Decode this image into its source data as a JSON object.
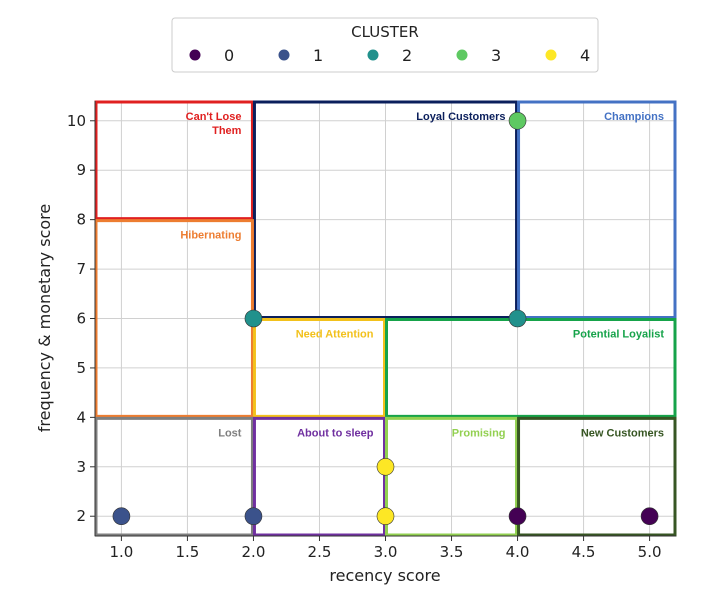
{
  "chart_data": {
    "type": "scatter",
    "xlabel": "recency score",
    "ylabel": "frequency & monetary score",
    "xlim": [
      0.8,
      5.2
    ],
    "ylim": [
      1.6,
      10.4
    ],
    "xticks": [
      1.0,
      1.5,
      2.0,
      2.5,
      3.0,
      3.5,
      4.0,
      4.5,
      5.0
    ],
    "xtick_labels": [
      "1.0",
      "1.5",
      "2.0",
      "2.5",
      "3.0",
      "3.5",
      "4.0",
      "4.5",
      "5.0"
    ],
    "yticks": [
      2,
      3,
      4,
      5,
      6,
      7,
      8,
      9,
      10
    ],
    "ytick_labels": [
      "2",
      "3",
      "4",
      "5",
      "6",
      "7",
      "8",
      "9",
      "10"
    ],
    "grid": true,
    "legend": {
      "title": "CLUSTER",
      "placement": "top-center",
      "entries": [
        {
          "label": "0",
          "color": "#440154"
        },
        {
          "label": "1",
          "color": "#3b528b"
        },
        {
          "label": "2",
          "color": "#21918c"
        },
        {
          "label": "3",
          "color": "#5ec962"
        },
        {
          "label": "4",
          "color": "#fde725"
        }
      ]
    },
    "points": [
      {
        "x": 4.0,
        "y": 2,
        "cluster": "0"
      },
      {
        "x": 5.0,
        "y": 2,
        "cluster": "0"
      },
      {
        "x": 1.0,
        "y": 2,
        "cluster": "1"
      },
      {
        "x": 2.0,
        "y": 2,
        "cluster": "1"
      },
      {
        "x": 2.0,
        "y": 6,
        "cluster": "2"
      },
      {
        "x": 4.0,
        "y": 6,
        "cluster": "2"
      },
      {
        "x": 4.0,
        "y": 10,
        "cluster": "3"
      },
      {
        "x": 3.0,
        "y": 2,
        "cluster": "4"
      },
      {
        "x": 3.0,
        "y": 3,
        "cluster": "4"
      }
    ],
    "segments": [
      {
        "label": "Can't Lose\nThem",
        "color": "#e02020",
        "x0": 0.8,
        "x1": 2.0,
        "y0": 8,
        "y1": 10.4
      },
      {
        "label": "Loyal Customers",
        "color": "#0b1f5c",
        "x0": 2.0,
        "x1": 4.0,
        "y0": 6,
        "y1": 10.4
      },
      {
        "label": "Champions",
        "color": "#4472c4",
        "x0": 4.0,
        "x1": 5.2,
        "y0": 6,
        "y1": 10.4
      },
      {
        "label": "Hibernating",
        "color": "#ed7d31",
        "x0": 0.8,
        "x1": 2.0,
        "y0": 4,
        "y1": 8
      },
      {
        "label": "Need Attention",
        "color": "#f2c11c",
        "x0": 2.0,
        "x1": 3.0,
        "y0": 4,
        "y1": 6
      },
      {
        "label": "Potential Loyalist",
        "color": "#16a34a",
        "x0": 3.0,
        "x1": 5.2,
        "y0": 4,
        "y1": 6
      },
      {
        "label": "Lost",
        "color": "#7f7f7f",
        "x0": 0.8,
        "x1": 2.0,
        "y0": 1.6,
        "y1": 4
      },
      {
        "label": "About to sleep",
        "color": "#7030a0",
        "x0": 2.0,
        "x1": 3.0,
        "y0": 1.6,
        "y1": 4
      },
      {
        "label": "Promising",
        "color": "#92d050",
        "x0": 3.0,
        "x1": 4.0,
        "y0": 1.6,
        "y1": 4
      },
      {
        "label": "New Customers",
        "color": "#375623",
        "x0": 4.0,
        "x1": 5.2,
        "y0": 1.6,
        "y1": 4
      }
    ]
  }
}
